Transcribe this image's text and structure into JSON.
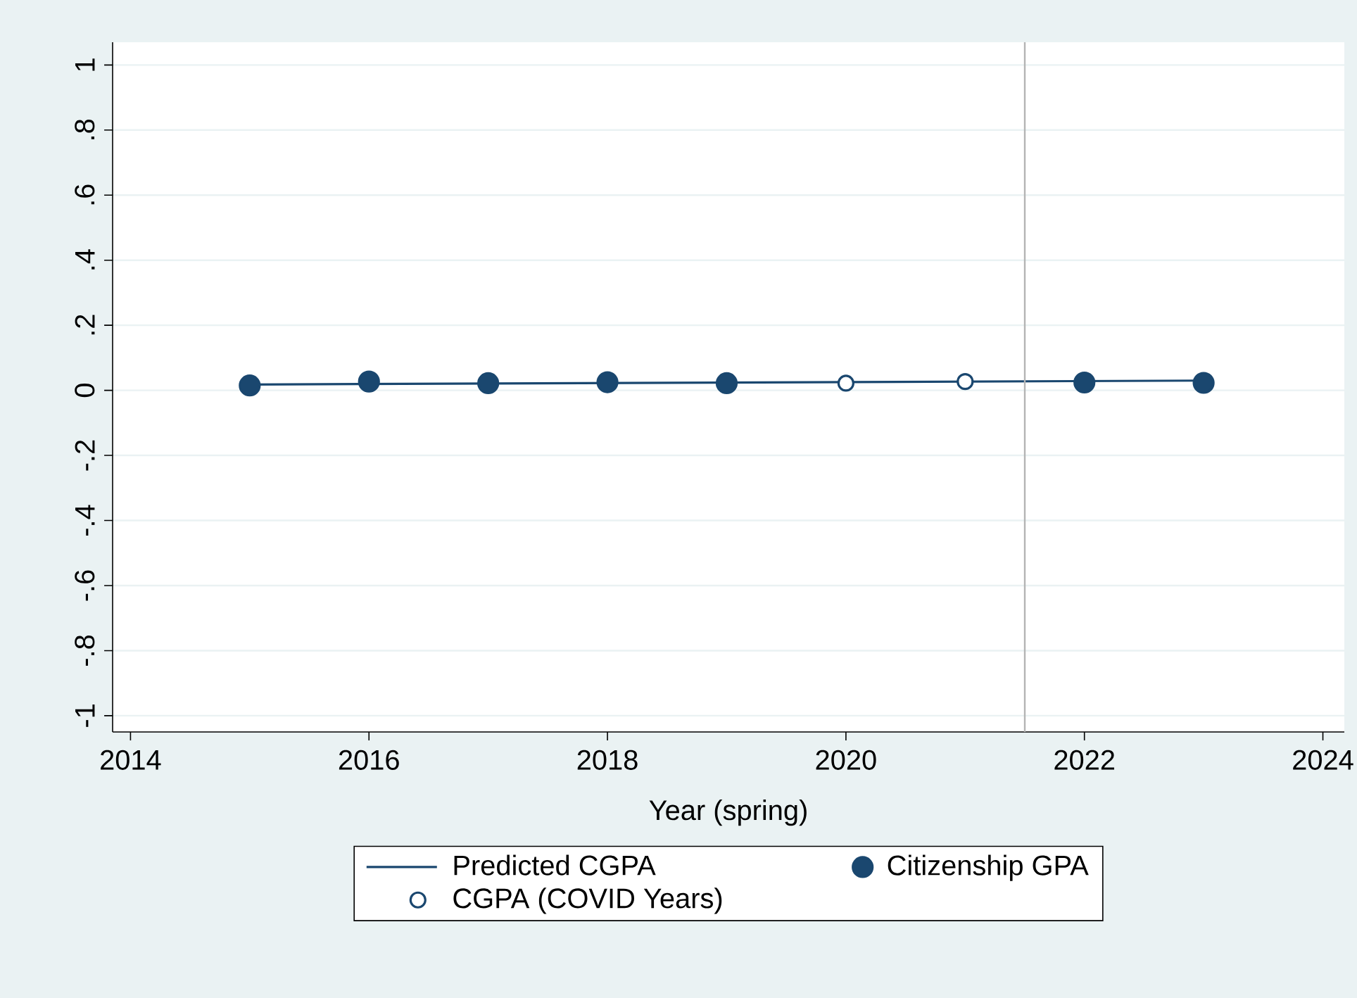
{
  "chart_data": {
    "type": "line",
    "xlabel": "Year (spring)",
    "xlim": [
      2013.85,
      2024.18
    ],
    "ylim": [
      -1.05,
      1.07
    ],
    "xticks": [
      2014,
      2016,
      2018,
      2020,
      2022,
      2024
    ],
    "yticks": [
      -1,
      {
        "value": -0.8,
        "label": "-.8"
      },
      {
        "value": -0.6,
        "label": "-.6"
      },
      {
        "value": -0.4,
        "label": "-.4"
      },
      {
        "value": -0.2,
        "label": "-.2"
      },
      0,
      {
        "value": 0.2,
        "label": ".2"
      },
      {
        "value": 0.4,
        "label": ".4"
      },
      {
        "value": 0.6,
        "label": ".6"
      },
      {
        "value": 0.8,
        "label": ".8"
      },
      1
    ],
    "grid": "y",
    "legend": "bottom",
    "ref_lines": [
      {
        "axis": "x",
        "value": 2021.5,
        "color": "#b4b4b4"
      }
    ],
    "series": [
      {
        "name": "Predicted CGPA",
        "color": "#1a476f",
        "marker": "none",
        "x": [
          2015,
          2023
        ],
        "values": [
          0.018,
          0.03
        ]
      },
      {
        "name": "Citizenship GPA",
        "type": "scatter",
        "color": "#1a476f",
        "marker": "circle",
        "x": [
          2015,
          2016,
          2017,
          2018,
          2019,
          2022,
          2023
        ],
        "values": [
          0.015,
          0.027,
          0.022,
          0.025,
          0.022,
          0.024,
          0.023
        ]
      },
      {
        "name": "CGPA (COVID Years)",
        "type": "scatter",
        "color": "#1a476f",
        "marker": "circle",
        "x": [
          2020,
          2021
        ],
        "values": [
          0.022,
          0.027
        ]
      }
    ]
  }
}
